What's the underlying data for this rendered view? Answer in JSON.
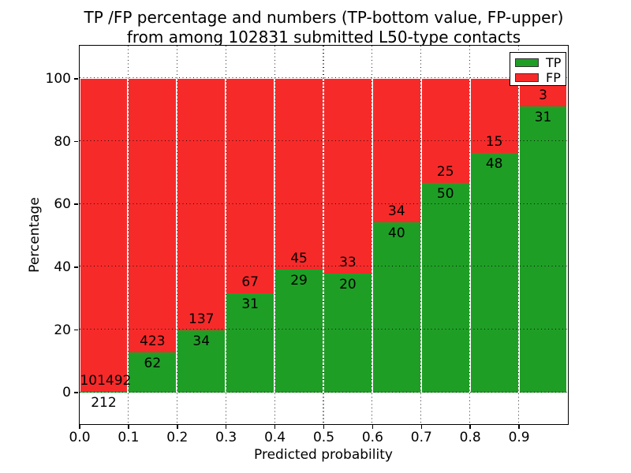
{
  "title": {
    "line1": "TP /FP percentage and numbers (TP-bottom value, FP-upper)",
    "line2": "from among 102831 submitted L50-type contacts"
  },
  "axes": {
    "xlabel": "Predicted probability",
    "ylabel": "Percentage",
    "x_tick_labels": [
      "0.0",
      "0.1",
      "0.2",
      "0.3",
      "0.4",
      "0.5",
      "0.6",
      "0.7",
      "0.8",
      "0.9"
    ],
    "y_tick_labels": [
      "0",
      "20",
      "40",
      "60",
      "80",
      "100"
    ],
    "y_tick_values": [
      0,
      20,
      40,
      60,
      80,
      100
    ],
    "grid_style": "dotted"
  },
  "legend": {
    "position": "upper right",
    "items": [
      {
        "label": "TP",
        "color": "#1f9e26"
      },
      {
        "label": "FP",
        "color": "#f72a2a"
      }
    ]
  },
  "chart_data": {
    "type": "bar",
    "stacked": true,
    "title": "TP /FP percentage and numbers (TP-bottom value, FP-upper) from among 102831 submitted L50-type contacts",
    "xlabel": "Predicted probability",
    "ylabel": "Percentage",
    "total_contacts": 102831,
    "bin_edges": [
      0.0,
      0.1,
      0.2,
      0.3,
      0.4,
      0.5,
      0.6,
      0.7,
      0.8,
      0.9,
      1.0
    ],
    "categories": [
      "0.0-0.1",
      "0.1-0.2",
      "0.2-0.3",
      "0.3-0.4",
      "0.4-0.5",
      "0.5-0.6",
      "0.6-0.7",
      "0.7-0.8",
      "0.8-0.9",
      "0.9-1.0"
    ],
    "series": [
      {
        "name": "TP",
        "color": "#1f9e26",
        "counts": [
          212,
          62,
          34,
          31,
          29,
          20,
          40,
          50,
          48,
          31
        ],
        "pct": [
          0.21,
          12.78,
          19.88,
          31.63,
          39.19,
          37.74,
          54.05,
          66.67,
          76.19,
          91.18
        ]
      },
      {
        "name": "FP",
        "color": "#f72a2a",
        "counts": [
          101492,
          423,
          137,
          67,
          45,
          33,
          34,
          25,
          15,
          3
        ],
        "pct": [
          99.79,
          87.22,
          80.12,
          68.37,
          60.81,
          62.26,
          45.95,
          33.33,
          23.81,
          8.82
        ]
      }
    ],
    "ylim": [
      -10,
      110.5
    ],
    "xlim": [
      0.0,
      1.0
    ],
    "grid": true,
    "legend_position": "upper right"
  }
}
